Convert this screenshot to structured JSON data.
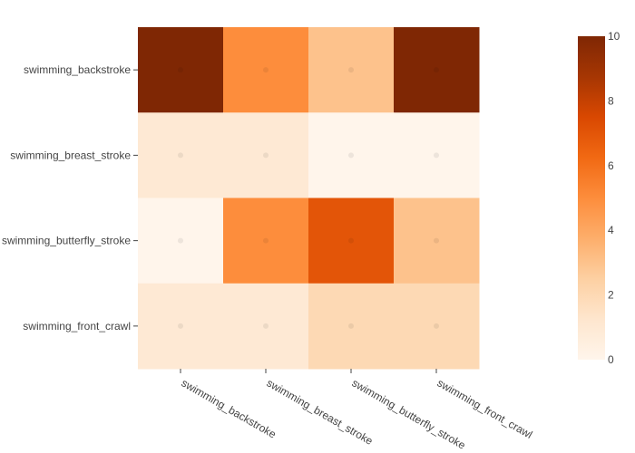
{
  "chart_data": {
    "type": "heatmap",
    "x_categories": [
      "swimming_backstroke",
      "swimming_breast_stroke",
      "swimming_butterfly_stroke",
      "swimming_front_crawl"
    ],
    "y_categories": [
      "swimming_backstroke",
      "swimming_breast_stroke",
      "swimming_butterfly_stroke",
      "swimming_front_crawl"
    ],
    "values": [
      [
        10,
        5,
        3,
        10
      ],
      [
        1,
        1,
        0,
        0
      ],
      [
        0,
        5,
        7,
        3
      ],
      [
        1,
        1,
        2,
        2
      ]
    ],
    "zlim": [
      0,
      10
    ],
    "colorscale": "Oranges",
    "colorbar_ticks": [
      0,
      2,
      4,
      6,
      8,
      10
    ],
    "title": "",
    "xlabel": "",
    "ylabel": ""
  }
}
